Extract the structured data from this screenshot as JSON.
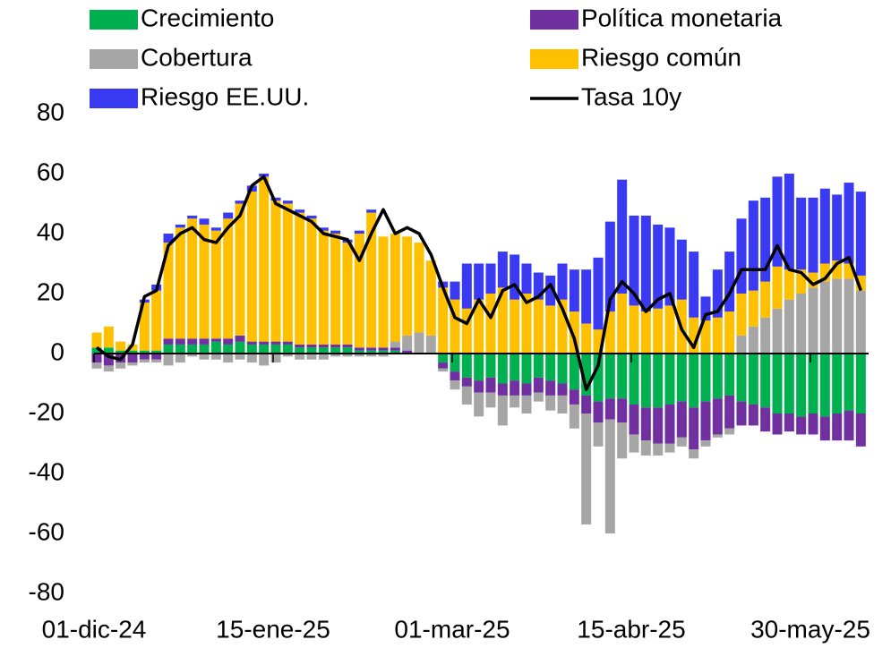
{
  "chart_data": {
    "type": "bar",
    "stacked": true,
    "categories": [
      "01-dic-24",
      null,
      null,
      null,
      null,
      null,
      null,
      null,
      null,
      null,
      null,
      null,
      null,
      null,
      null,
      "15-ene-25",
      null,
      null,
      null,
      null,
      null,
      null,
      null,
      null,
      null,
      null,
      null,
      null,
      null,
      null,
      "01-mar-25",
      null,
      null,
      null,
      null,
      null,
      null,
      null,
      null,
      null,
      null,
      null,
      null,
      null,
      null,
      "15-abr-25",
      null,
      null,
      null,
      null,
      null,
      null,
      null,
      null,
      null,
      null,
      null,
      null,
      null,
      null,
      "30-may-25",
      null,
      null,
      null,
      null
    ],
    "ylim": [
      -80,
      80
    ],
    "yticks": [
      -80,
      -60,
      -40,
      -20,
      0,
      20,
      40,
      60,
      80
    ],
    "grid": false,
    "series": [
      {
        "name": "Crecimiento",
        "color": "#00b050",
        "values": [
          2,
          2,
          1,
          1,
          1,
          1,
          3,
          3,
          3,
          3,
          4,
          3,
          4,
          3,
          3,
          3,
          3,
          2,
          2,
          2,
          2,
          2,
          1,
          1,
          1,
          1,
          0,
          0,
          0,
          -3,
          -6,
          -8,
          -9,
          -8,
          -10,
          -9,
          -10,
          -8,
          -9,
          -10,
          -12,
          -14,
          -16,
          -15,
          -15,
          -17,
          -18,
          -18,
          -17,
          -16,
          -18,
          -16,
          -15,
          -14,
          -16,
          -17,
          -18,
          -20,
          -20,
          -21,
          -20,
          -21,
          -20,
          -19,
          -20
        ]
      },
      {
        "name": "Política monetaria",
        "color": "#7030a0",
        "values": [
          -3,
          -4,
          -3,
          -3,
          -2,
          -2,
          2,
          2,
          2,
          2,
          1,
          2,
          2,
          1,
          1,
          1,
          1,
          1,
          1,
          1,
          1,
          1,
          1,
          1,
          1,
          1,
          1,
          0,
          0,
          -2,
          -3,
          -3,
          -4,
          -5,
          -4,
          -5,
          -4,
          -5,
          -5,
          -4,
          -5,
          -6,
          -7,
          -7,
          -8,
          -10,
          -11,
          -12,
          -13,
          -12,
          -14,
          -13,
          -12,
          -11,
          -8,
          -7,
          -8,
          -7,
          -6,
          -6,
          -7,
          -8,
          -9,
          -10,
          -11
        ]
      },
      {
        "name": "Cobertura",
        "color": "#a6a6a6",
        "values": [
          -2,
          -2,
          -2,
          -1,
          -1,
          -1,
          -4,
          -3,
          -1,
          -2,
          -2,
          -3,
          -2,
          -3,
          -4,
          -3,
          -1,
          -2,
          -2,
          -2,
          -1,
          -1,
          -1,
          -1,
          -1,
          2,
          5,
          7,
          6,
          -1,
          -3,
          -6,
          -8,
          -5,
          -10,
          -4,
          -6,
          -3,
          -5,
          -6,
          -8,
          -37,
          -8,
          -38,
          -12,
          -6,
          -5,
          -4,
          -3,
          -3,
          -3,
          -2,
          -1,
          -2,
          6,
          9,
          12,
          15,
          18,
          20,
          22,
          24,
          25,
          25,
          21
        ]
      },
      {
        "name": "Riesgo común",
        "color": "#ffc000",
        "values": [
          5,
          7,
          3,
          2,
          16,
          20,
          32,
          37,
          40,
          38,
          36,
          40,
          44,
          50,
          55,
          47,
          46,
          44,
          42,
          38,
          37,
          34,
          38,
          45,
          37,
          36,
          33,
          30,
          25,
          22,
          18,
          15,
          18,
          20,
          22,
          18,
          20,
          18,
          16,
          18,
          14,
          10,
          8,
          14,
          20,
          16,
          14,
          15,
          16,
          18,
          12,
          11,
          12,
          14,
          14,
          12,
          12,
          14,
          10,
          8,
          5,
          6,
          6,
          5,
          5
        ]
      },
      {
        "name": "Riesgo EE.UU.",
        "color": "#3a3af2",
        "values": [
          0,
          0,
          0,
          0,
          1,
          2,
          3,
          1,
          1,
          2,
          1,
          2,
          1,
          2,
          1,
          1,
          1,
          1,
          1,
          1,
          1,
          1,
          1,
          1,
          0,
          0,
          0,
          0,
          0,
          2,
          6,
          15,
          12,
          10,
          12,
          15,
          10,
          9,
          10,
          12,
          14,
          18,
          24,
          30,
          38,
          30,
          32,
          28,
          26,
          20,
          22,
          8,
          16,
          20,
          25,
          30,
          28,
          30,
          32,
          24,
          25,
          25,
          22,
          27,
          28
        ]
      },
      {
        "name": "Tasa 10y",
        "type": "line",
        "color": "#000000",
        "values": [
          2,
          -1,
          -2,
          3,
          19,
          21,
          36,
          40,
          42,
          38,
          37,
          42,
          46,
          56,
          59,
          50,
          48,
          46,
          44,
          40,
          39,
          38,
          31,
          40,
          48,
          40,
          42,
          40,
          33,
          22,
          12,
          10,
          18,
          12,
          21,
          23,
          17,
          19,
          23,
          15,
          5,
          -12,
          -4,
          18,
          24,
          20,
          14,
          18,
          20,
          8,
          2,
          13,
          14,
          20,
          28,
          28,
          28,
          36,
          28,
          27,
          23,
          25,
          30,
          32,
          21
        ]
      }
    ]
  }
}
